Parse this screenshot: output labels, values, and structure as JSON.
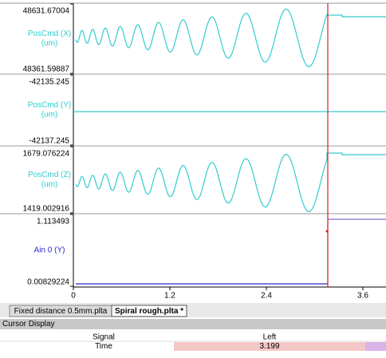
{
  "panels": [
    {
      "max": "48631.67004",
      "min": "48361.59887",
      "name": "PosCmd (X)",
      "unit": "(um)"
    },
    {
      "max": "-42135.245",
      "min": "-42137.245",
      "name": "PosCmd (Y)",
      "unit": "(um)"
    },
    {
      "max": "1679.076224",
      "min": "1419.002916",
      "name": "PosCmd (Z)",
      "unit": "(um)"
    },
    {
      "max": "1.113493",
      "min": "0.00829224",
      "name": "Ain 0 (Y)"
    }
  ],
  "x_axis": {
    "ticks": [
      "0",
      "1.2",
      "2.4",
      "3.6"
    ]
  },
  "tabs": [
    "Fixed distance 0.5mm.plta",
    "Spiral rough.plta *"
  ],
  "cursor_display": {
    "title": "Cursor Display",
    "rows": [
      [
        "Signal",
        "Left"
      ],
      [
        "Time",
        "3.199"
      ]
    ]
  }
}
